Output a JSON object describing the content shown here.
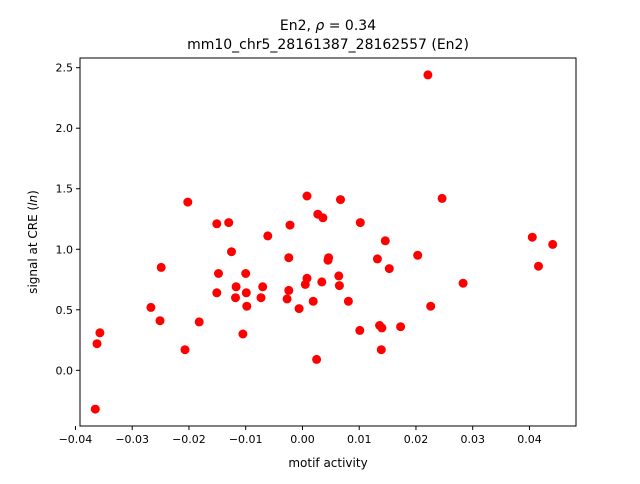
{
  "chart_data": {
    "type": "scatter",
    "title_line1": "En2, ",
    "title_rho": "ρ",
    "title_rho_value": " = 0.34",
    "title_line2": "mm10_chr5_28161387_28162557 (En2)",
    "xlabel": "motif activity",
    "ylabel_prefix": "signal at CRE (",
    "ylabel_italic": "ln",
    "ylabel_suffix": ")",
    "xlim": [
      -0.0392,
      0.0482
    ],
    "ylim": [
      -0.46,
      2.58
    ],
    "xticks": [
      -0.04,
      -0.03,
      -0.02,
      -0.01,
      0.0,
      0.01,
      0.02,
      0.03,
      0.04
    ],
    "xtick_labels": [
      "−0.04",
      "−0.03",
      "−0.02",
      "−0.01",
      "0.00",
      "0.01",
      "0.02",
      "0.03",
      "0.04"
    ],
    "yticks": [
      0.0,
      0.5,
      1.0,
      1.5,
      2.0,
      2.5
    ],
    "ytick_labels": [
      "0.0",
      "0.5",
      "1.0",
      "1.5",
      "2.0",
      "2.5"
    ],
    "grid": false,
    "marker_color": "#ff0000",
    "points": [
      [
        -0.0365,
        -0.32
      ],
      [
        -0.0362,
        0.22
      ],
      [
        -0.0357,
        0.31
      ],
      [
        -0.0267,
        0.52
      ],
      [
        -0.0251,
        0.41
      ],
      [
        -0.0249,
        0.85
      ],
      [
        -0.0207,
        0.17
      ],
      [
        -0.0202,
        1.39
      ],
      [
        -0.0182,
        0.4
      ],
      [
        -0.0151,
        1.21
      ],
      [
        -0.0151,
        0.64
      ],
      [
        -0.0148,
        0.8
      ],
      [
        -0.013,
        1.22
      ],
      [
        -0.0125,
        0.98
      ],
      [
        -0.0118,
        0.6
      ],
      [
        -0.0117,
        0.69
      ],
      [
        -0.0105,
        0.3
      ],
      [
        -0.01,
        0.8
      ],
      [
        -0.0099,
        0.64
      ],
      [
        -0.0098,
        0.53
      ],
      [
        -0.0073,
        0.6
      ],
      [
        -0.007,
        0.69
      ],
      [
        -0.0061,
        1.11
      ],
      [
        -0.0027,
        0.59
      ],
      [
        -0.0024,
        0.66
      ],
      [
        -0.0024,
        0.93
      ],
      [
        -0.0022,
        1.2
      ],
      [
        -0.0006,
        0.51
      ],
      [
        0.0005,
        0.71
      ],
      [
        0.0008,
        0.76
      ],
      [
        0.0008,
        1.44
      ],
      [
        0.0019,
        0.57
      ],
      [
        0.0025,
        0.09
      ],
      [
        0.0027,
        1.29
      ],
      [
        0.0034,
        0.73
      ],
      [
        0.0036,
        1.26
      ],
      [
        0.0045,
        0.91
      ],
      [
        0.0046,
        0.93
      ],
      [
        0.0064,
        0.78
      ],
      [
        0.0065,
        0.7
      ],
      [
        0.0067,
        1.41
      ],
      [
        0.0081,
        0.57
      ],
      [
        0.0101,
        0.33
      ],
      [
        0.0102,
        1.22
      ],
      [
        0.0132,
        0.92
      ],
      [
        0.0136,
        0.37
      ],
      [
        0.0139,
        0.17
      ],
      [
        0.014,
        0.35
      ],
      [
        0.0146,
        1.07
      ],
      [
        0.0153,
        0.84
      ],
      [
        0.0173,
        0.36
      ],
      [
        0.0203,
        0.95
      ],
      [
        0.0221,
        2.44
      ],
      [
        0.0226,
        0.53
      ],
      [
        0.0246,
        1.42
      ],
      [
        0.0283,
        0.72
      ],
      [
        0.0405,
        1.1
      ],
      [
        0.0416,
        0.86
      ],
      [
        0.0441,
        1.04
      ]
    ]
  }
}
